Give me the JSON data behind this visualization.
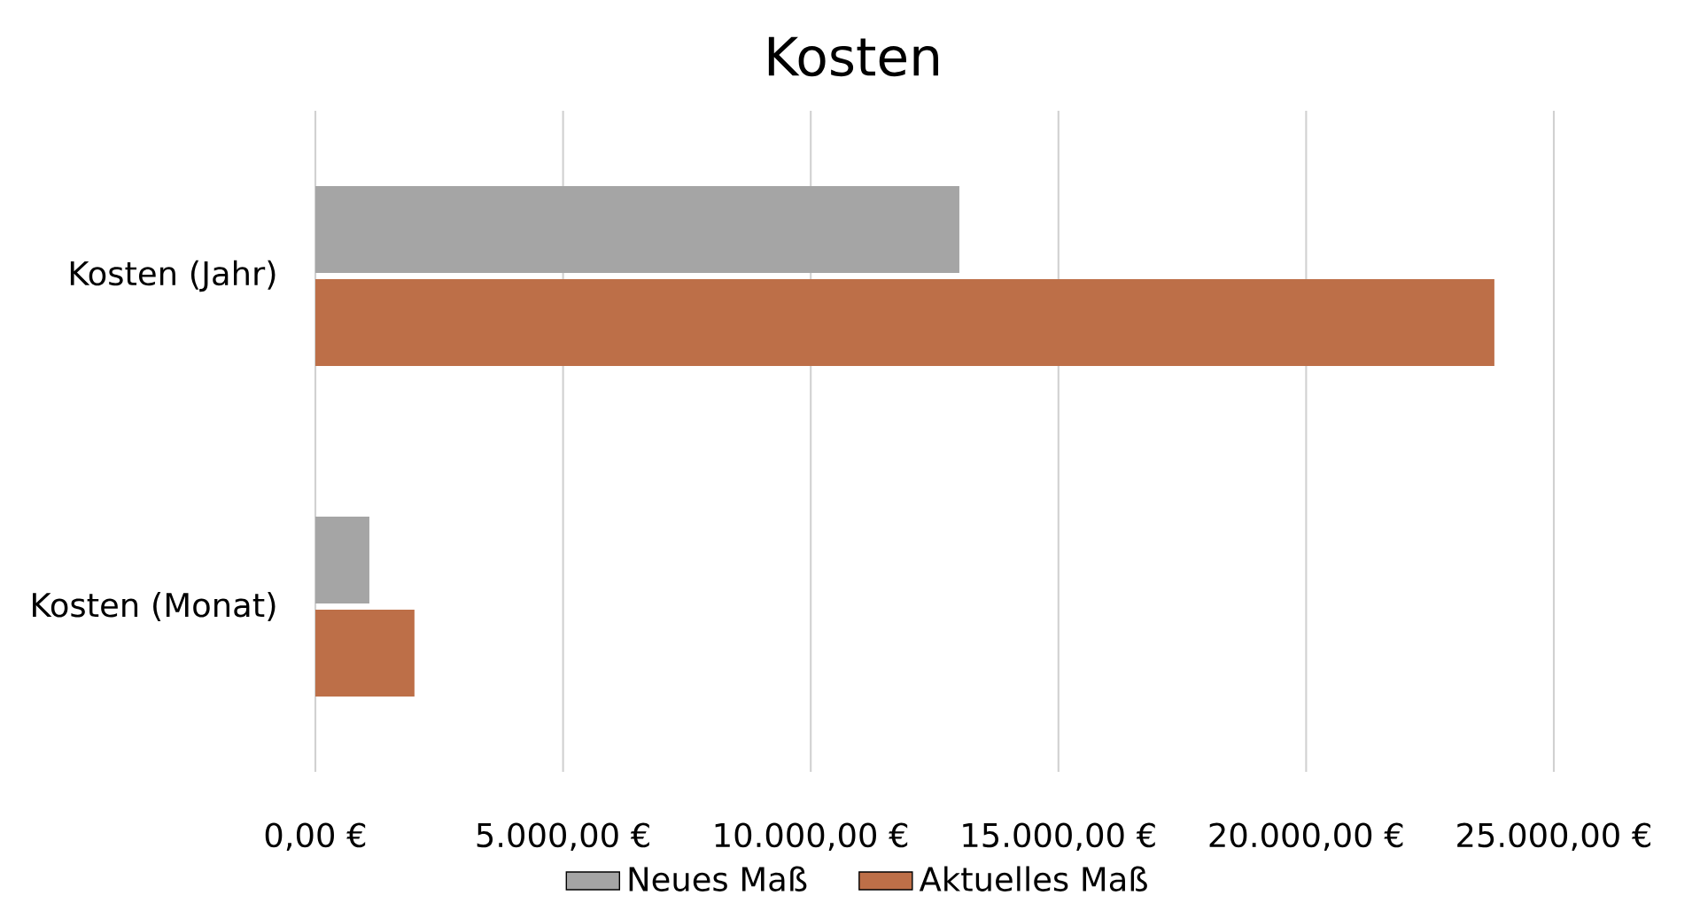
{
  "chart_data": {
    "type": "bar",
    "orientation": "horizontal",
    "title": "Kosten",
    "categories": [
      "Kosten (Jahr)",
      "Kosten (Monat)"
    ],
    "series": [
      {
        "name": "Neues Maß",
        "color": "#a5a5a5",
        "values": [
          13000,
          1090
        ]
      },
      {
        "name": "Aktuelles Maß",
        "color": "#bd6f48",
        "values": [
          23800,
          2000
        ]
      }
    ],
    "xlim": [
      0,
      25000
    ],
    "xticks": [
      {
        "value": 0,
        "label": "0,00 €"
      },
      {
        "value": 5000,
        "label": "5.000,00 €"
      },
      {
        "value": 10000,
        "label": "10.000,00 €"
      },
      {
        "value": 15000,
        "label": "15.000,00 €"
      },
      {
        "value": 20000,
        "label": "20.000,00 €"
      },
      {
        "value": 25000,
        "label": "25.000,00 €"
      }
    ],
    "grid": "x",
    "legend": "bottom"
  }
}
